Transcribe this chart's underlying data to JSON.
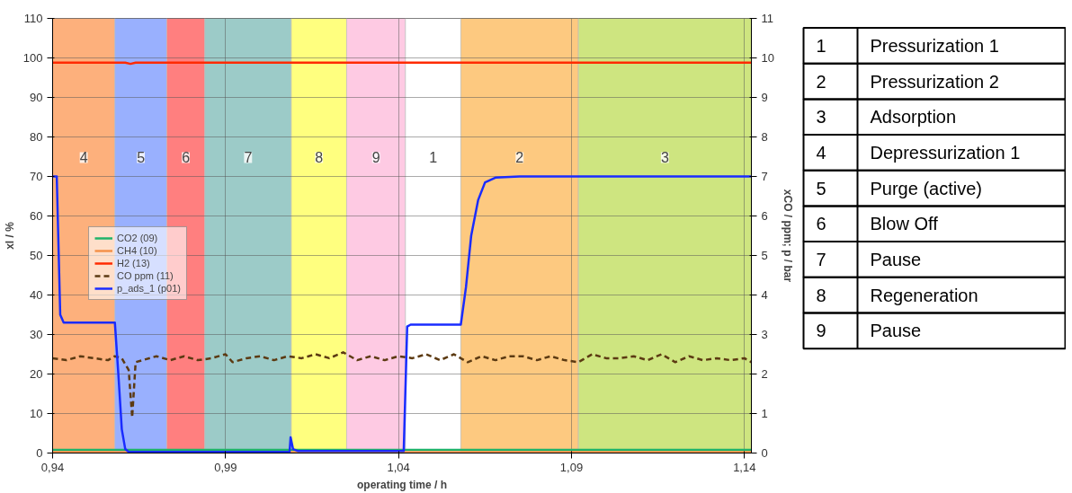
{
  "chart_data": {
    "type": "line",
    "xlabel": "operating time / h",
    "ylabel": "xl / %",
    "y2label": "xCO / ppm; p / bar",
    "xlim": [
      0.94,
      1.142
    ],
    "xticks": [
      {
        "value": 0.94,
        "label": "0,94"
      },
      {
        "value": 0.99,
        "label": "0,99"
      },
      {
        "value": 1.04,
        "label": "1,04"
      },
      {
        "value": 1.09,
        "label": "1,09"
      },
      {
        "value": 1.14,
        "label": "1,14"
      }
    ],
    "ylim": [
      0,
      110
    ],
    "yticks": [
      0,
      10,
      20,
      30,
      40,
      50,
      60,
      70,
      80,
      90,
      100,
      110
    ],
    "y2lim": [
      0,
      11
    ],
    "y2ticks": [
      0,
      1,
      2,
      3,
      4,
      5,
      6,
      7,
      8,
      9,
      10,
      11
    ],
    "grid": true,
    "legend": "left",
    "series": [
      {
        "name": "CO2 (09)",
        "color": "#1fb36a",
        "x": [
          0.94,
          1.142
        ],
        "values": [
          0.8,
          0.8
        ]
      },
      {
        "name": "CH4 (10)",
        "color": "#f4924a",
        "x": [
          0.94,
          1.142
        ],
        "values": [
          0.2,
          0.2
        ]
      },
      {
        "name": "H2 (13)",
        "color": "#ff2a00",
        "x": [
          0.94,
          0.961,
          0.9625,
          0.964,
          1.142
        ],
        "values": [
          98.8,
          98.8,
          98.5,
          98.8,
          98.8
        ]
      },
      {
        "name": "CO ppm (11)",
        "color": "#5c3a12",
        "axis": "y2",
        "line_style": "dashed",
        "x": [
          0.94,
          0.944,
          0.948,
          0.952,
          0.956,
          0.958,
          0.96,
          0.962,
          0.963,
          0.964,
          0.966,
          0.97,
          0.974,
          0.978,
          0.982,
          0.986,
          0.99,
          0.992,
          0.996,
          1.0,
          1.004,
          1.008,
          1.012,
          1.016,
          1.02,
          1.024,
          1.028,
          1.032,
          1.036,
          1.04,
          1.044,
          1.048,
          1.052,
          1.056,
          1.06,
          1.064,
          1.068,
          1.072,
          1.076,
          1.08,
          1.084,
          1.088,
          1.092,
          1.096,
          1.1,
          1.104,
          1.108,
          1.112,
          1.116,
          1.12,
          1.124,
          1.128,
          1.132,
          1.136,
          1.14,
          1.142
        ],
        "values": [
          2.4,
          2.35,
          2.45,
          2.4,
          2.35,
          2.45,
          2.4,
          2.1,
          0.9,
          2.3,
          2.35,
          2.45,
          2.35,
          2.45,
          2.35,
          2.4,
          2.5,
          2.3,
          2.4,
          2.45,
          2.35,
          2.45,
          2.4,
          2.5,
          2.4,
          2.55,
          2.35,
          2.45,
          2.35,
          2.45,
          2.4,
          2.5,
          2.35,
          2.5,
          2.3,
          2.45,
          2.35,
          2.45,
          2.45,
          2.35,
          2.45,
          2.35,
          2.3,
          2.5,
          2.4,
          2.4,
          2.45,
          2.35,
          2.5,
          2.3,
          2.45,
          2.35,
          2.4,
          2.35,
          2.4,
          2.3
        ]
      },
      {
        "name": "p_ads_1 (p01)",
        "color": "#1a2cff",
        "axis": "y2",
        "x": [
          0.94,
          0.9412,
          0.9422,
          0.9432,
          0.958,
          0.959,
          0.96,
          0.961,
          0.962,
          1.0085,
          1.0088,
          1.0095,
          1.011,
          1.0415,
          1.0425,
          1.0435,
          1.058,
          1.0595,
          1.061,
          1.063,
          1.065,
          1.068,
          1.075,
          1.142
        ],
        "values": [
          7.0,
          7.0,
          3.5,
          3.3,
          3.3,
          2.0,
          0.6,
          0.1,
          0.03,
          0.03,
          0.4,
          0.1,
          0.05,
          0.05,
          3.2,
          3.25,
          3.25,
          4.2,
          5.5,
          6.4,
          6.85,
          6.97,
          7.0,
          7.0
        ]
      }
    ],
    "bands": [
      {
        "axis": "x",
        "from": 0.94,
        "to": 0.958,
        "label": "4",
        "color": "#fdb07c"
      },
      {
        "axis": "x",
        "from": 0.958,
        "to": 0.973,
        "label": "5",
        "color": "#99b0fe"
      },
      {
        "axis": "x",
        "from": 0.973,
        "to": 0.984,
        "label": "6",
        "color": "#ff7f7f"
      },
      {
        "axis": "x",
        "from": 0.984,
        "to": 1.009,
        "label": "7",
        "color": "#9ccbc8"
      },
      {
        "axis": "x",
        "from": 1.009,
        "to": 1.025,
        "label": "8",
        "color": "#ffff7f"
      },
      {
        "axis": "x",
        "from": 1.025,
        "to": 1.042,
        "label": "9",
        "color": "#fecae3"
      },
      {
        "axis": "x",
        "from": 1.042,
        "to": 1.058,
        "label": "1",
        "color": "#ffffff"
      },
      {
        "axis": "x",
        "from": 1.058,
        "to": 1.092,
        "label": "2",
        "color": "#fdc980"
      },
      {
        "axis": "x",
        "from": 1.092,
        "to": 1.142,
        "label": "3",
        "color": "#cee580"
      }
    ],
    "annotations": [
      "1 Pressurization 1",
      "2 Pressurization 2",
      "3 Adsorption",
      "4 Depressurization 1",
      "5 Purge (active)",
      "6 Blow Off",
      "7 Pause",
      "8 Regeneration",
      "9 Pause"
    ]
  }
}
